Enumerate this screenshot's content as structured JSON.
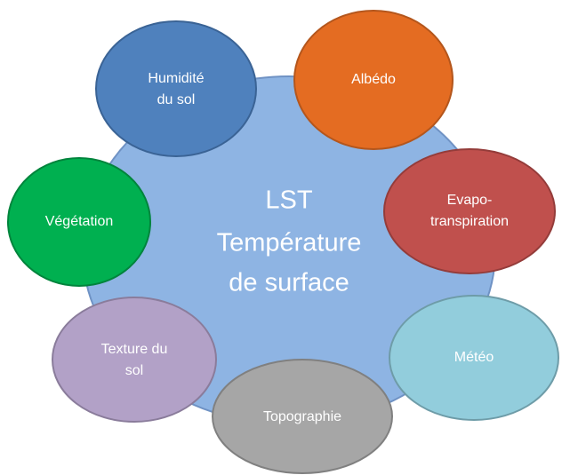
{
  "center": {
    "lines": [
      "LST",
      "Température",
      "de surface"
    ]
  },
  "nodes": [
    {
      "lines": [
        "Humidité",
        "du sol"
      ]
    },
    {
      "lines": [
        "Albédo"
      ]
    },
    {
      "lines": [
        "Evapo-",
        "transpiration"
      ]
    },
    {
      "lines": [
        "Météo"
      ]
    },
    {
      "lines": [
        "Topographie"
      ]
    },
    {
      "lines": [
        "Texture du",
        "sol"
      ]
    },
    {
      "lines": [
        "Végétation"
      ]
    }
  ]
}
